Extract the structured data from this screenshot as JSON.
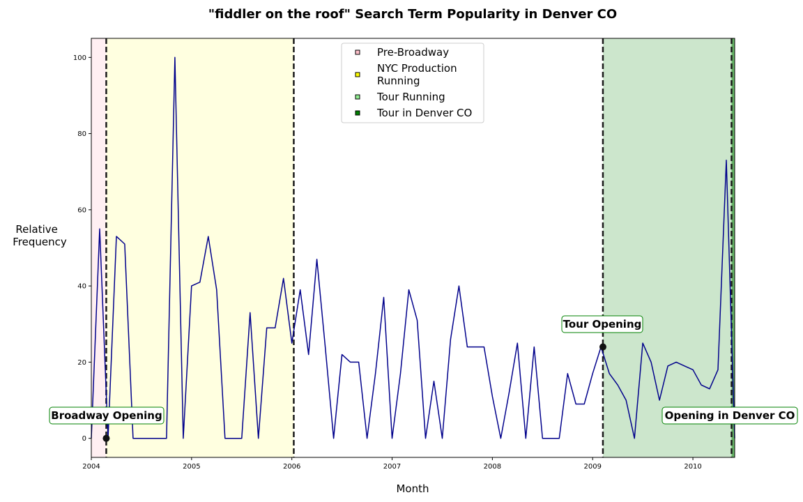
{
  "chart_data": {
    "type": "line",
    "title": "\"fiddler on the roof\" Search Term Popularity in Denver CO",
    "xlabel": "Month",
    "ylabel_lines": [
      "Relative",
      "Frequency"
    ],
    "xlim": [
      "2004-01",
      "2010-06"
    ],
    "ylim": [
      -5,
      105
    ],
    "x_ticks": [
      "2004",
      "2005",
      "2006",
      "2007",
      "2008",
      "2009",
      "2010"
    ],
    "y_ticks": [
      0,
      20,
      40,
      60,
      80,
      100
    ],
    "grid": false,
    "series": [
      {
        "color": "#00008b",
        "x": [
          "2004-01",
          "2004-02",
          "2004-03",
          "2004-04",
          "2004-05",
          "2004-06",
          "2004-07",
          "2004-08",
          "2004-09",
          "2004-10",
          "2004-11",
          "2004-12",
          "2005-01",
          "2005-02",
          "2005-03",
          "2005-04",
          "2005-05",
          "2005-06",
          "2005-07",
          "2005-08",
          "2005-09",
          "2005-10",
          "2005-11",
          "2005-12",
          "2006-01",
          "2006-02",
          "2006-03",
          "2006-04",
          "2006-05",
          "2006-06",
          "2006-07",
          "2006-08",
          "2006-09",
          "2006-10",
          "2006-11",
          "2006-12",
          "2007-01",
          "2007-02",
          "2007-03",
          "2007-04",
          "2007-05",
          "2007-06",
          "2007-07",
          "2007-08",
          "2007-09",
          "2007-10",
          "2007-11",
          "2007-12",
          "2008-01",
          "2008-02",
          "2008-03",
          "2008-04",
          "2008-05",
          "2008-06",
          "2008-07",
          "2008-08",
          "2008-09",
          "2008-10",
          "2008-11",
          "2008-12",
          "2009-01",
          "2009-02",
          "2009-03",
          "2009-04",
          "2009-05",
          "2009-06",
          "2009-07",
          "2009-08",
          "2009-09",
          "2009-10",
          "2009-11",
          "2009-12",
          "2010-01",
          "2010-02",
          "2010-03",
          "2010-04",
          "2010-05",
          "2010-06"
        ],
        "y": [
          0,
          55,
          0,
          53,
          51,
          0,
          0,
          0,
          0,
          0,
          100,
          0,
          40,
          41,
          53,
          39,
          0,
          0,
          0,
          33,
          0,
          29,
          29,
          42,
          25,
          39,
          22,
          47,
          24,
          0,
          22,
          20,
          20,
          0,
          17,
          37,
          0,
          17,
          39,
          31,
          0,
          15,
          0,
          26,
          40,
          24,
          24,
          24,
          11,
          0,
          12,
          25,
          0,
          24,
          0,
          0,
          0,
          17,
          9,
          9,
          17,
          24,
          17,
          14,
          10,
          0,
          25,
          20,
          10,
          19,
          20,
          19,
          18,
          14,
          13,
          18,
          73,
          0
        ]
      }
    ],
    "shaded_periods": [
      {
        "label": "Pre-Broadway",
        "start": "2004-01",
        "end": "2004-02-25",
        "color": "#ffc0cb",
        "opacity": 0.25
      },
      {
        "label": "NYC Production Running",
        "start": "2004-02-25",
        "end": "2006-01-08",
        "color": "#ffff00",
        "opacity": 0.12
      },
      {
        "label": "Tour Running",
        "start": "2009-02-08",
        "end": "2010-05-20",
        "color": "#008000",
        "opacity": 0.2
      },
      {
        "label": "Tour in Denver CO",
        "start": "2010-05-20",
        "end": "2010-05-31",
        "color": "#008000",
        "opacity": 0.6
      }
    ],
    "events": [
      {
        "x": "2004-02-25",
        "y": 0,
        "label": "Broadway Opening"
      },
      {
        "x": "2006-01-08",
        "y": null,
        "label": ""
      },
      {
        "x": "2009-02-08",
        "y": 24,
        "label": "Tour Opening"
      },
      {
        "x": "2010-05-20",
        "y": null,
        "label": "Opening in Denver CO"
      }
    ],
    "legend": {
      "placement": "top-center",
      "entries": [
        {
          "lines": [
            "Pre-Broadway"
          ],
          "color": "#ffc0cb"
        },
        {
          "lines": [
            "NYC Production",
            "Running"
          ],
          "color": "#ffff00"
        },
        {
          "lines": [
            "Tour Running"
          ],
          "color": "#90ee90"
        },
        {
          "lines": [
            "Tour in Denver CO"
          ],
          "color": "#008000"
        }
      ]
    }
  }
}
